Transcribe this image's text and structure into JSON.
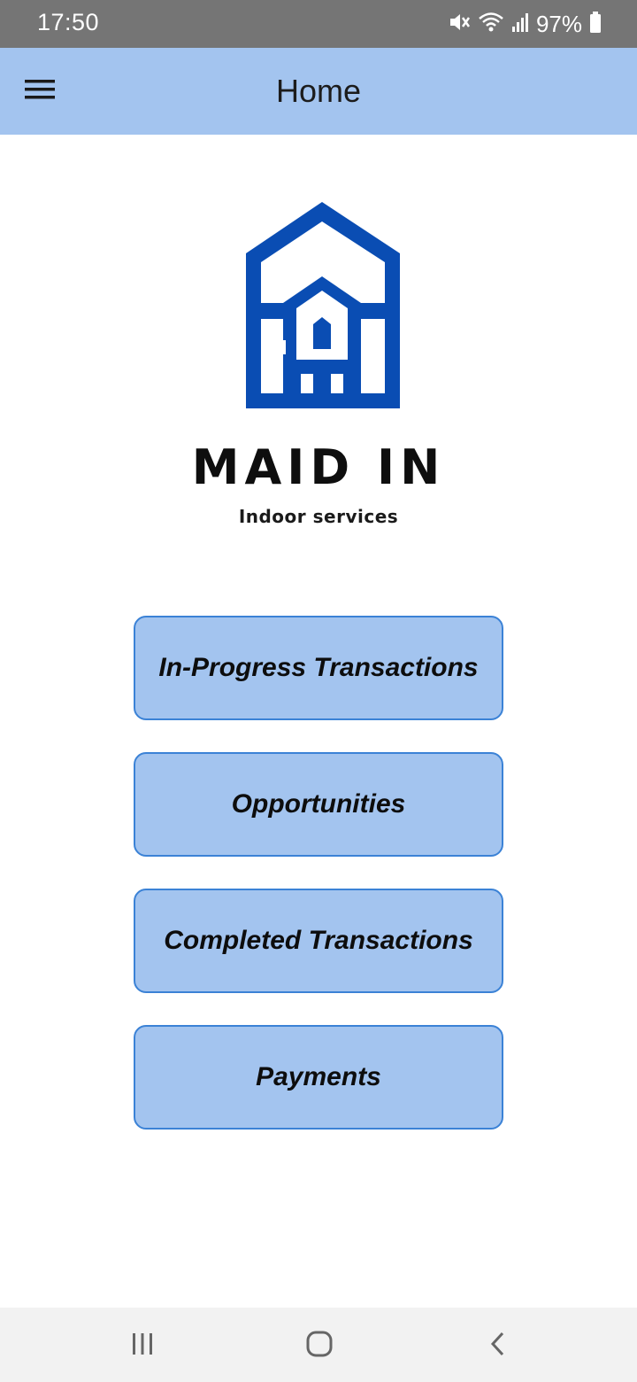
{
  "status_bar": {
    "time": "17:50",
    "battery_percent": "97%",
    "icons": [
      "mute-icon",
      "wifi-icon",
      "signal-icon",
      "battery-icon"
    ],
    "background_color": "#757575"
  },
  "app_bar": {
    "title": "Home",
    "menu_icon": "hamburger-menu-icon",
    "background_color": "#a3c4ef"
  },
  "logo": {
    "brand_name": "MAID IN",
    "tagline": "Indoor services",
    "brand_color": "#0a4db3"
  },
  "menu": {
    "items": [
      {
        "label": "In-Progress Transactions"
      },
      {
        "label": "Opportunities"
      },
      {
        "label": "Completed Transactions"
      },
      {
        "label": "Payments"
      }
    ],
    "button_color": "#a3c4ef",
    "border_color": "#3b82d6"
  },
  "nav_bar": {
    "icons": [
      "recent-apps-icon",
      "home-icon",
      "back-icon"
    ]
  }
}
